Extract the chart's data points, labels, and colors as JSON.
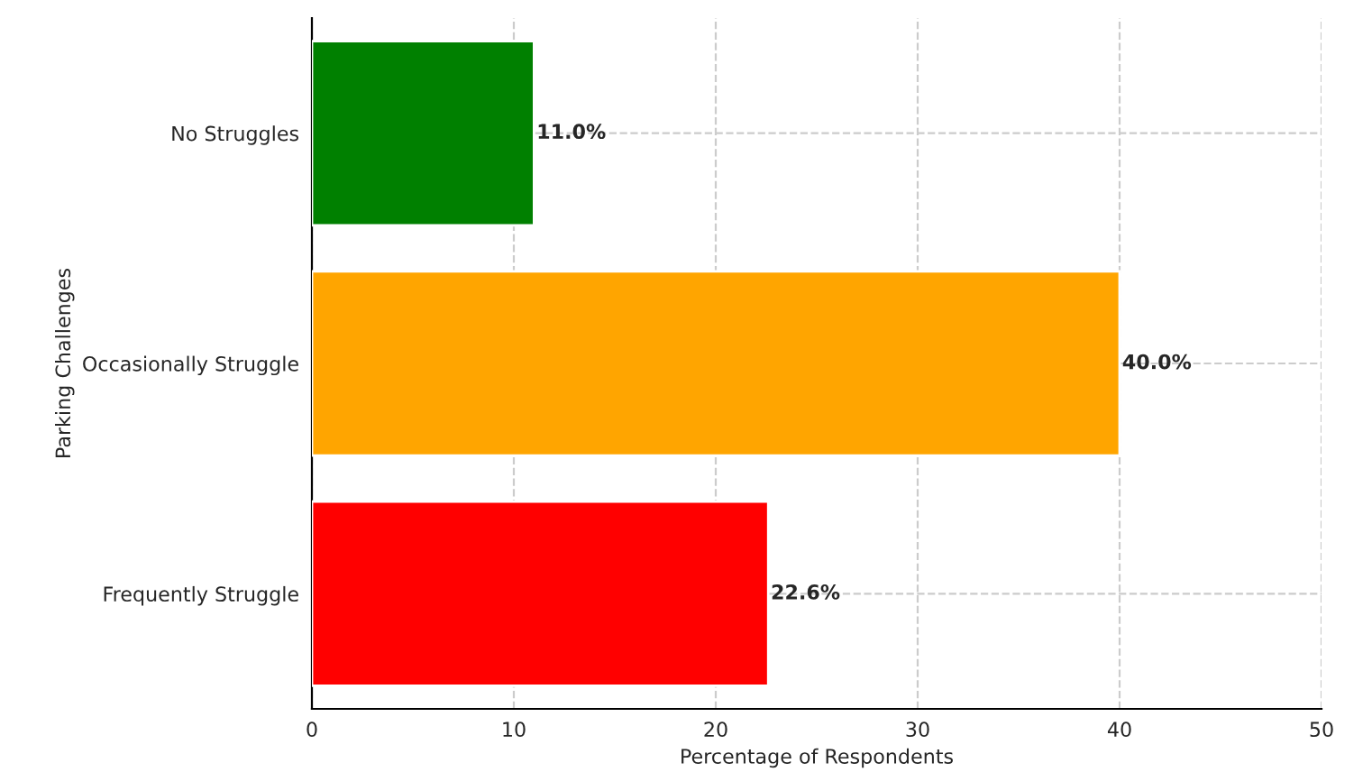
{
  "chart_data": {
    "type": "bar",
    "orientation": "horizontal",
    "xlabel": "Percentage of Respondents",
    "ylabel": "Parking Challenges",
    "categories": [
      "No Struggles",
      "Occasionally Struggle",
      "Frequently Struggle"
    ],
    "values": [
      11.0,
      40.0,
      22.6
    ],
    "colors": [
      "#008000",
      "#ffa500",
      "#ff0000"
    ],
    "value_labels": [
      "11.0%",
      "40.0%",
      "22.6%"
    ],
    "xlim": [
      0,
      50
    ],
    "xticks": [
      0,
      10,
      20,
      30,
      40,
      50
    ],
    "grid": true
  }
}
